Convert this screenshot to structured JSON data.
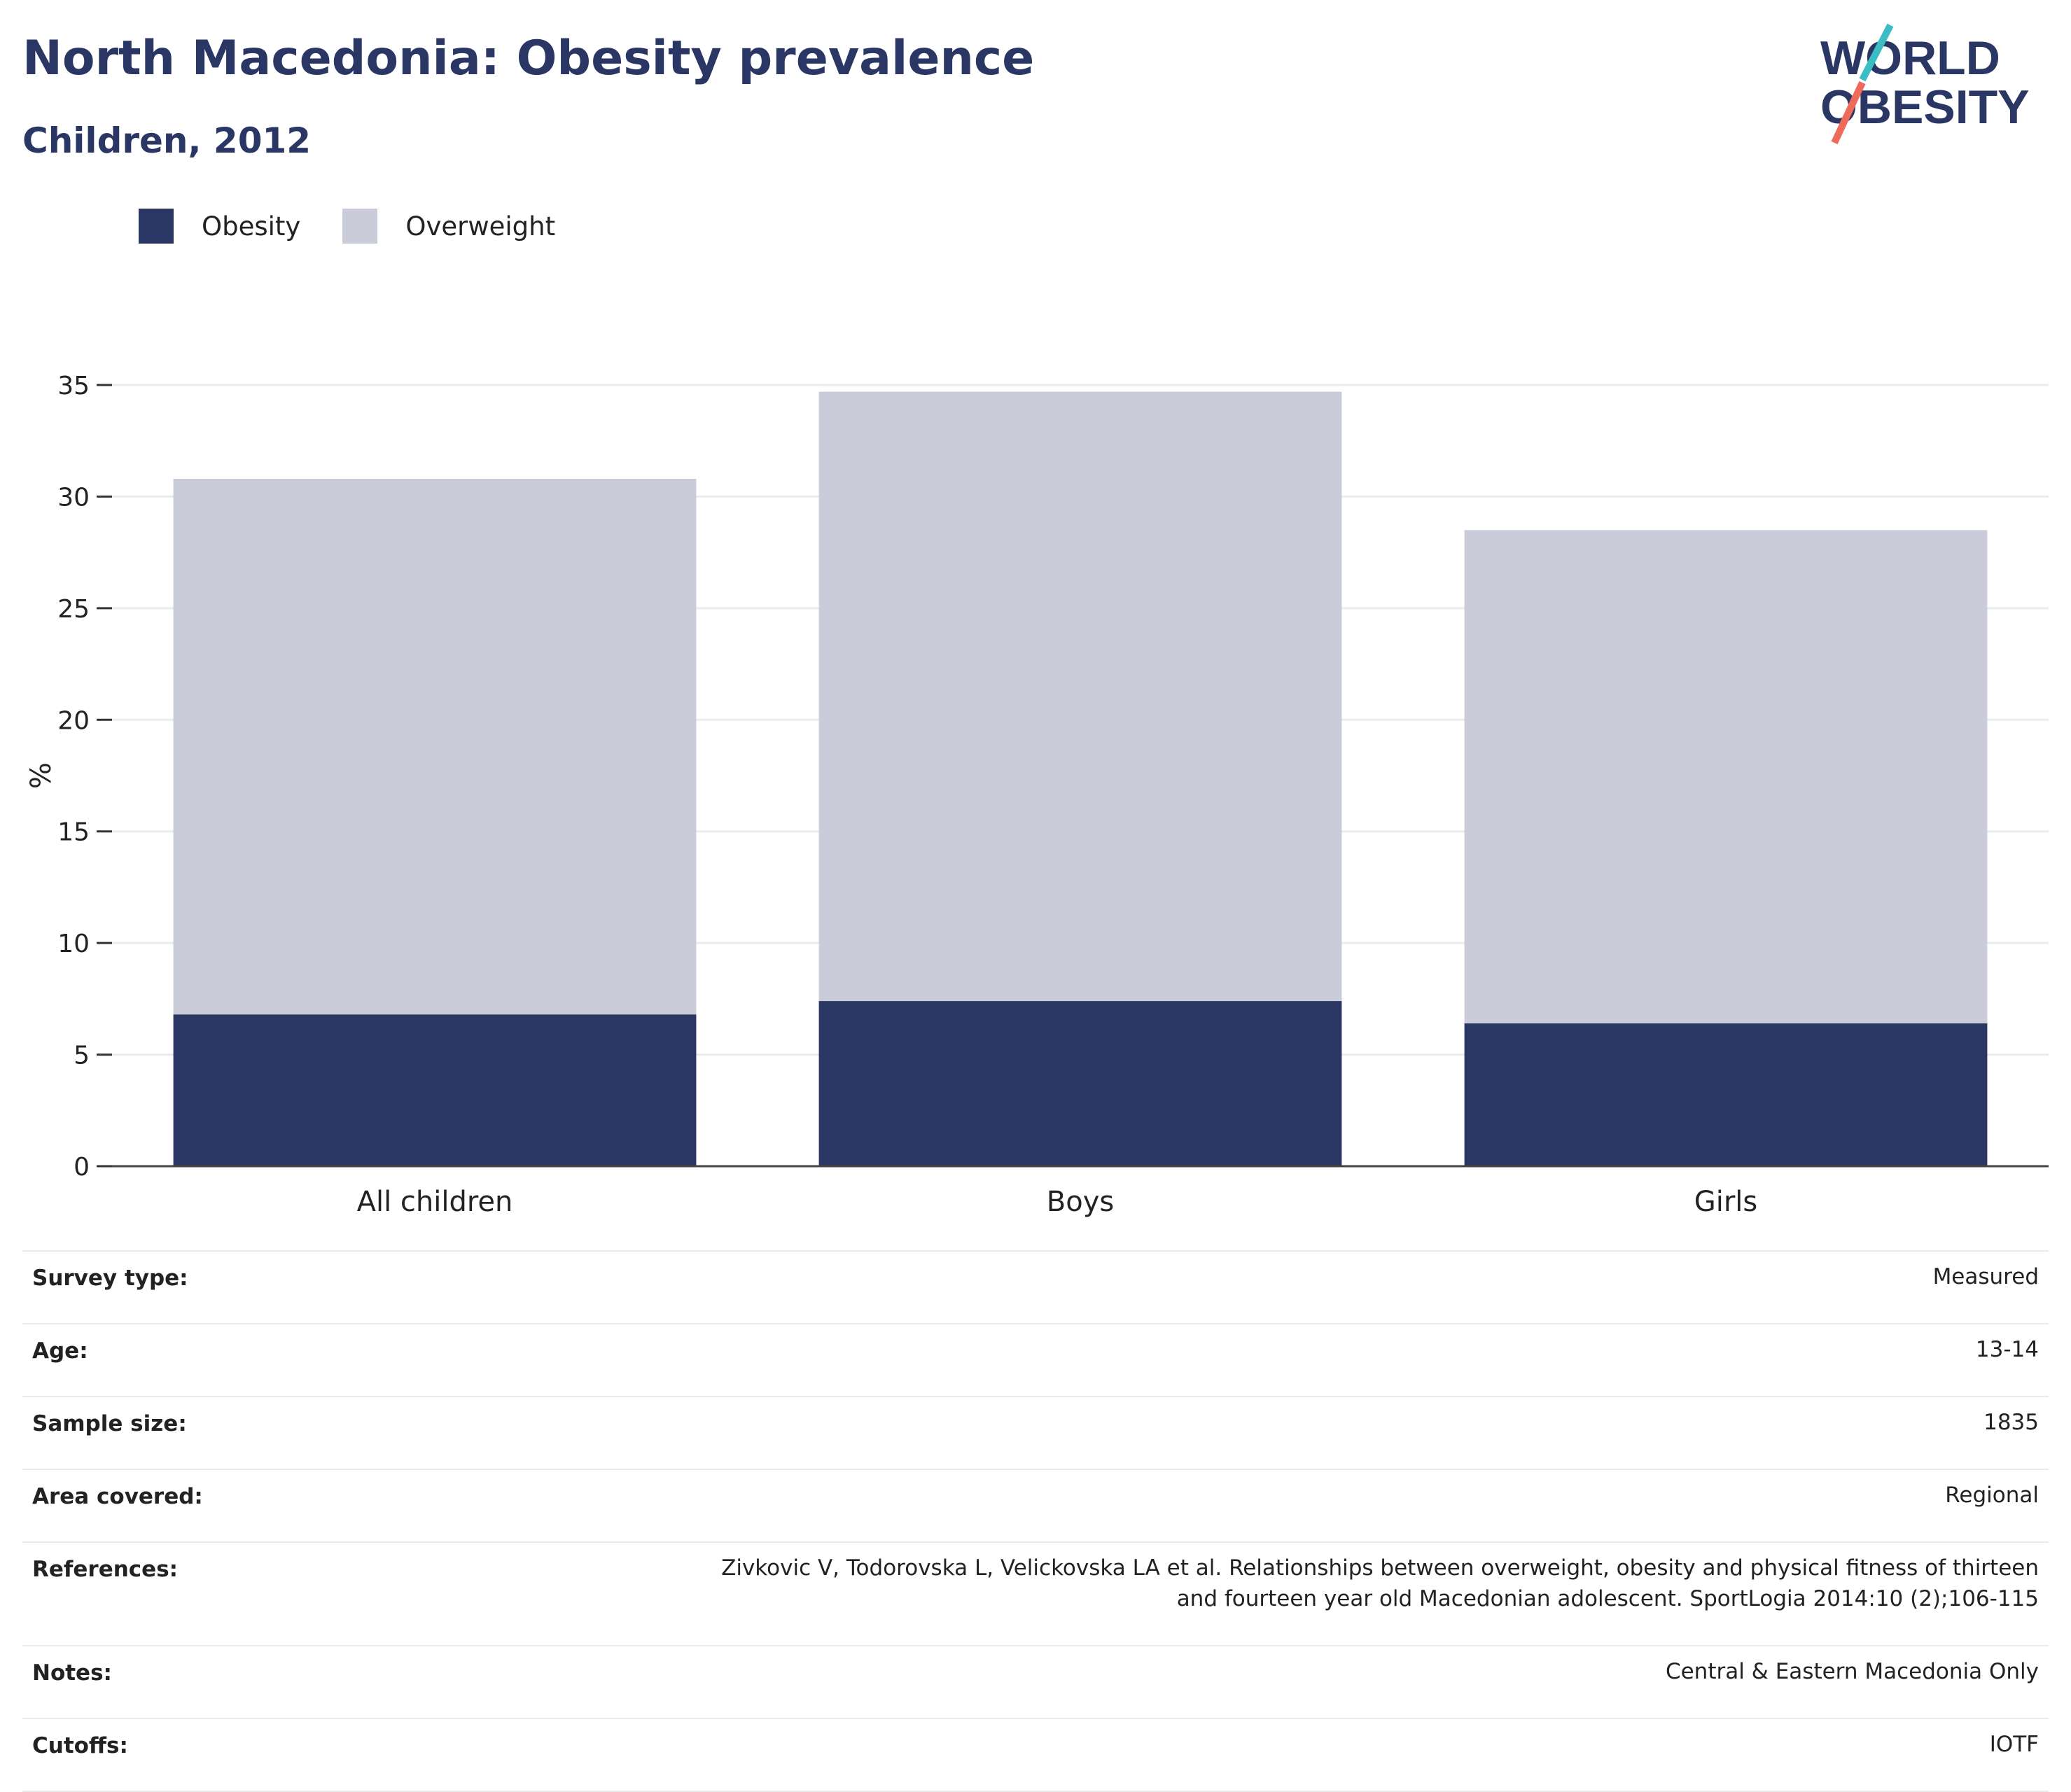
{
  "header": {
    "title": "North Macedonia: Obesity prevalence",
    "subtitle": "Children, 2012"
  },
  "logo": {
    "line1": "WORLD",
    "line2": "OBESITY"
  },
  "legend": [
    {
      "label": "Obesity",
      "color": "#2a3765"
    },
    {
      "label": "Overweight",
      "color": "#cacdd9"
    }
  ],
  "chart_data": {
    "type": "bar",
    "stacked": true,
    "categories": [
      "All children",
      "Boys",
      "Girls"
    ],
    "series": [
      {
        "name": "Obesity",
        "values": [
          6.8,
          7.4,
          6.4
        ],
        "color": "#2a3765"
      },
      {
        "name": "Overweight",
        "values": [
          24.0,
          27.3,
          22.1
        ],
        "color": "#cacdd9"
      }
    ],
    "ylabel": "%",
    "ylim": [
      0,
      35
    ],
    "yticks": [
      0,
      5,
      10,
      15,
      20,
      25,
      30,
      35
    ],
    "grid": true,
    "legend_position": "top-left"
  },
  "info": [
    {
      "key": "Survey type:",
      "value": "Measured"
    },
    {
      "key": "Age:",
      "value": "13-14"
    },
    {
      "key": "Sample size:",
      "value": "1835"
    },
    {
      "key": "Area covered:",
      "value": "Regional"
    },
    {
      "key": "References:",
      "value": "Zivkovic V, Todorovska L, Velickovska LA et al. Relationships between overweight, obesity and physical fitness of thirteen and fourteen year old Macedonian adolescent. SportLogia 2014:10 (2);106-115"
    },
    {
      "key": "Notes:",
      "value": "Central & Eastern Macedonia Only"
    },
    {
      "key": "Cutoffs:",
      "value": "IOTF"
    }
  ]
}
